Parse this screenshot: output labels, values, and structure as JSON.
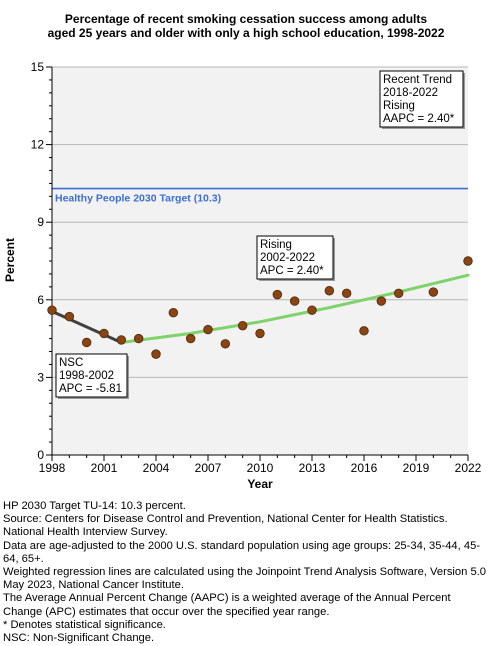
{
  "chart_data": {
    "type": "scatter",
    "title_lines": [
      "Percentage of recent smoking cessation success among adults",
      "aged 25 years and older with only a high school education, 1998-2022"
    ],
    "xlabel": "Year",
    "ylabel": "Percent",
    "xlim": [
      1998,
      2022
    ],
    "ylim": [
      0,
      15
    ],
    "x_ticks": [
      1998,
      2001,
      2004,
      2007,
      2010,
      2013,
      2016,
      2019,
      2022
    ],
    "y_ticks": [
      0,
      3,
      6,
      9,
      12,
      15
    ],
    "grid": "horizontal",
    "target": {
      "label": "Healthy People 2030 Target (10.3)",
      "value": 10.3,
      "color": "#3b6fd6"
    },
    "points": [
      {
        "x": 1998,
        "y": 5.6
      },
      {
        "x": 1999,
        "y": 5.35
      },
      {
        "x": 2000,
        "y": 4.35
      },
      {
        "x": 2001,
        "y": 4.7
      },
      {
        "x": 2002,
        "y": 4.45
      },
      {
        "x": 2003,
        "y": 4.5
      },
      {
        "x": 2004,
        "y": 3.9
      },
      {
        "x": 2005,
        "y": 5.5
      },
      {
        "x": 2006,
        "y": 4.5
      },
      {
        "x": 2007,
        "y": 4.85
      },
      {
        "x": 2008,
        "y": 4.3
      },
      {
        "x": 2009,
        "y": 5.0
      },
      {
        "x": 2010,
        "y": 4.7
      },
      {
        "x": 2011,
        "y": 6.2
      },
      {
        "x": 2012,
        "y": 5.95
      },
      {
        "x": 2013,
        "y": 5.6
      },
      {
        "x": 2014,
        "y": 6.35
      },
      {
        "x": 2015,
        "y": 6.25
      },
      {
        "x": 2016,
        "y": 4.8
      },
      {
        "x": 2017,
        "y": 5.95
      },
      {
        "x": 2018,
        "y": 6.25
      },
      {
        "x": 2020,
        "y": 6.3
      },
      {
        "x": 2022,
        "y": 7.5
      }
    ],
    "point_color": "#8b4513",
    "segments": [
      {
        "points": [
          [
            1998,
            5.55
          ],
          [
            2002,
            4.35
          ]
        ],
        "color": "#404040"
      },
      {
        "points": [
          [
            2002,
            4.35
          ],
          [
            2006,
            4.7
          ],
          [
            2010,
            5.15
          ],
          [
            2014,
            5.7
          ],
          [
            2018,
            6.3
          ],
          [
            2022,
            6.95
          ]
        ],
        "color": "#7ed36b"
      }
    ],
    "annotations": [
      {
        "id": "recent",
        "lines": [
          "Recent Trend",
          "2018-2022",
          "Rising",
          "AAPC =  2.40*"
        ]
      },
      {
        "id": "rising",
        "lines": [
          "Rising",
          "2002-2022",
          "APC =  2.40*"
        ]
      },
      {
        "id": "nsc",
        "lines": [
          "NSC",
          "1998-2002",
          "APC = -5.81"
        ]
      }
    ]
  },
  "footnotes": [
    "HP 2030 Target TU-14: 10.3 percent.",
    "Source: Centers for Disease Control and Prevention, National Center for Health Statistics. National Health Interview Survey.",
    "Data are age-adjusted to the 2000 U.S. standard population using age groups: 25-34, 35-44, 45-64, 65+.",
    "Weighted regression lines are calculated using the Joinpoint Trend Analysis Software, Version 5.0 May 2023, National Cancer Institute.",
    "The Average Annual Percent Change (AAPC) is a weighted average of the Annual Percent Change (APC) estimates that occur over the specified year range.",
    "* Denotes statistical significance.",
    "NSC: Non-Significant Change."
  ]
}
